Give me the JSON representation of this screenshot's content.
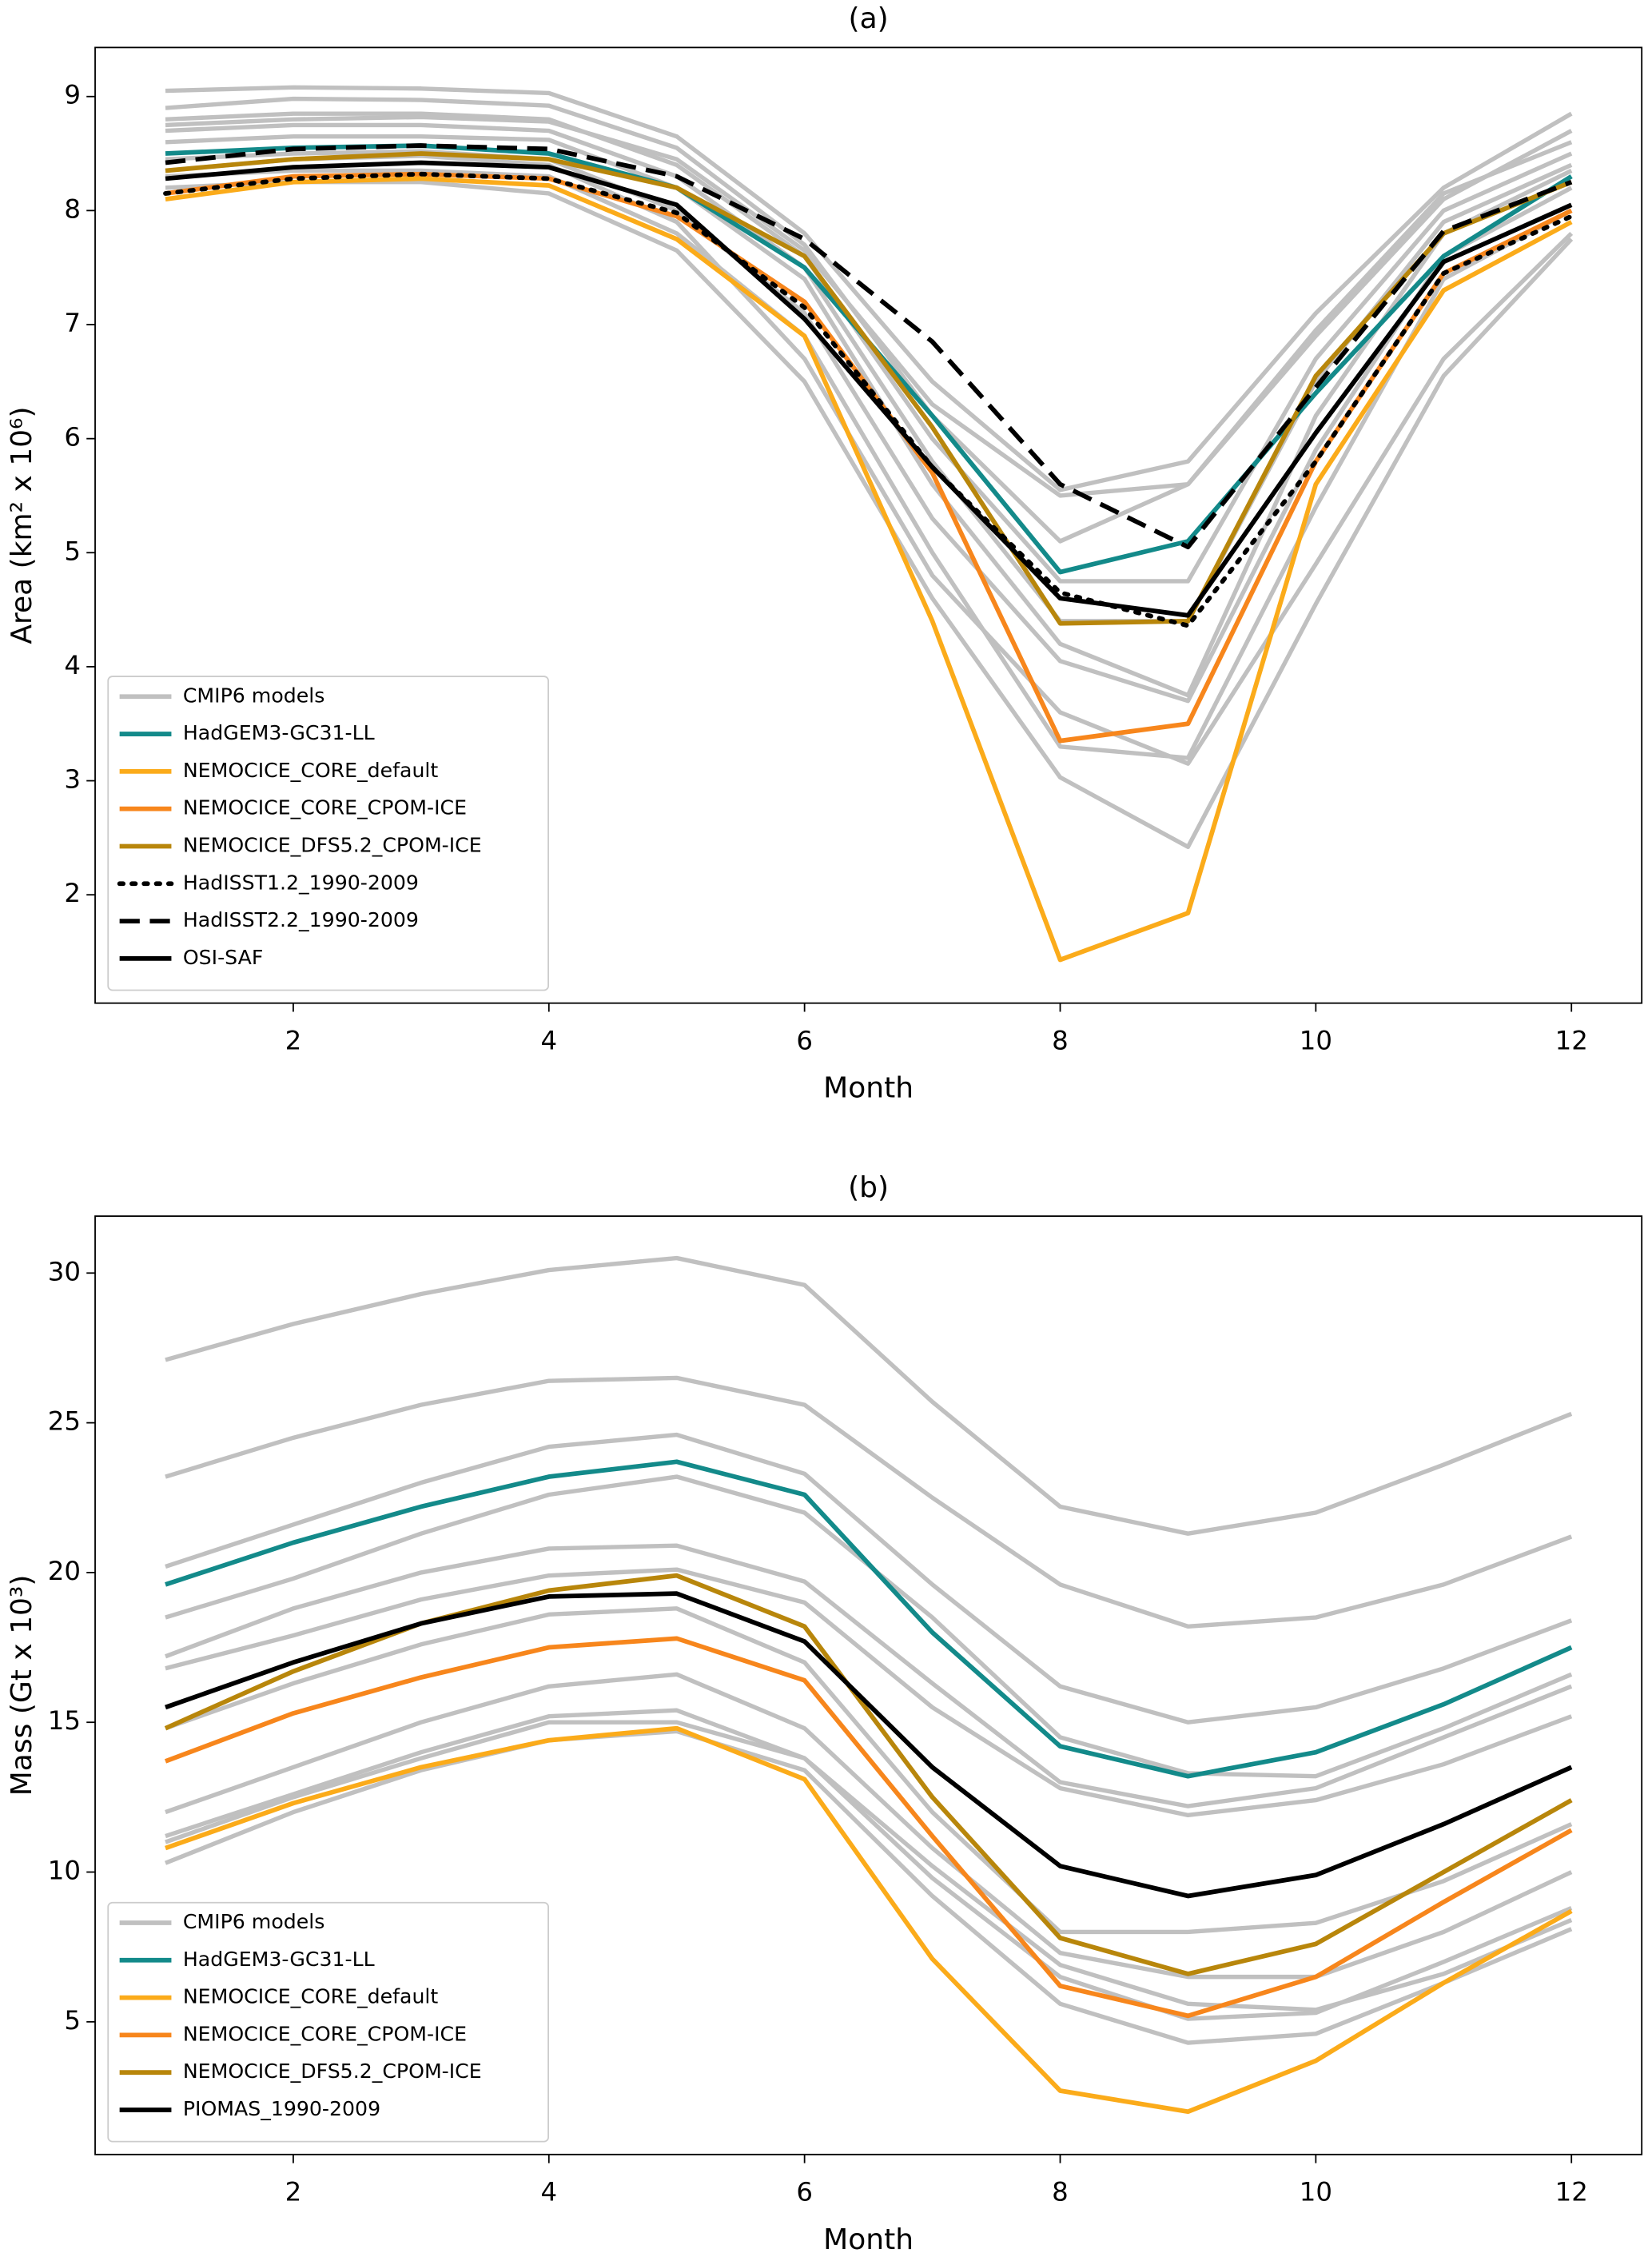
{
  "chart_data": [
    {
      "type": "line",
      "title": "(a)",
      "xlabel": "Month",
      "ylabel": "Area (km² x 10⁶)",
      "x": [
        1,
        2,
        3,
        4,
        5,
        6,
        7,
        8,
        9,
        10,
        11,
        12
      ],
      "xlim": [
        0.45,
        12.55
      ],
      "xticks": [
        2,
        4,
        6,
        8,
        10,
        12
      ],
      "ylim": [
        1.05,
        9.43
      ],
      "yticks": [
        2,
        3,
        4,
        5,
        6,
        7,
        8,
        9
      ],
      "legend": "lower left",
      "series": [
        {
          "name": "CMIP6 models",
          "color": "#c0c0c0",
          "members": [
            [
              9.05,
              9.08,
              9.07,
              9.03,
              8.65,
              7.8,
              6.5,
              5.55,
              5.8,
              7.1,
              8.2,
              8.85
            ],
            [
              8.9,
              8.98,
              8.97,
              8.92,
              8.55,
              7.7,
              6.2,
              5.1,
              5.6,
              6.9,
              8.1,
              8.7
            ],
            [
              8.8,
              8.85,
              8.85,
              8.8,
              8.4,
              7.6,
              6.0,
              4.75,
              4.75,
              6.7,
              8.0,
              8.5
            ],
            [
              8.7,
              8.75,
              8.75,
              8.7,
              8.3,
              7.5,
              5.8,
              4.4,
              4.4,
              6.5,
              7.9,
              8.4
            ],
            [
              8.6,
              8.65,
              8.65,
              8.62,
              8.2,
              7.4,
              5.6,
              4.2,
              3.75,
              6.2,
              7.8,
              8.35
            ],
            [
              8.45,
              8.5,
              8.52,
              8.45,
              8.0,
              7.1,
              5.3,
              4.05,
              3.7,
              5.9,
              7.6,
              8.2
            ],
            [
              8.3,
              8.35,
              8.35,
              8.3,
              7.8,
              6.9,
              5.0,
              3.3,
              3.2,
              5.4,
              7.4,
              8.0
            ],
            [
              8.2,
              8.25,
              8.25,
              8.15,
              7.65,
              6.5,
              4.6,
              3.03,
              2.42,
              4.55,
              6.55,
              7.75
            ],
            [
              8.35,
              8.45,
              8.48,
              8.4,
              7.9,
              6.7,
              4.8,
              3.6,
              3.15,
              4.9,
              6.7,
              7.8
            ],
            [
              8.75,
              8.8,
              8.82,
              8.78,
              8.45,
              7.65,
              6.3,
              5.5,
              5.6,
              6.95,
              8.15,
              8.6
            ]
          ]
        },
        {
          "name": "HadGEM3-GC31-LL",
          "color": "#138a8a",
          "values": [
            8.5,
            8.55,
            8.57,
            8.5,
            8.2,
            7.5,
            6.2,
            4.83,
            5.1,
            6.4,
            7.6,
            8.3
          ]
        },
        {
          "name": "NEMOCICE_CORE_default",
          "color": "#fbab1a",
          "values": [
            8.1,
            8.25,
            8.28,
            8.22,
            7.75,
            6.9,
            4.4,
            1.43,
            1.84,
            5.6,
            7.3,
            7.9
          ]
        },
        {
          "name": "NEMOCICE_CORE_CPOM-ICE",
          "color": "#f7861c",
          "values": [
            8.15,
            8.3,
            8.32,
            8.28,
            7.95,
            7.2,
            5.7,
            3.35,
            3.5,
            5.8,
            7.45,
            8.0
          ]
        },
        {
          "name": "NEMOCICE_DFS5.2_CPOM-ICE",
          "color": "#b8860b",
          "values": [
            8.35,
            8.45,
            8.5,
            8.45,
            8.2,
            7.6,
            6.1,
            4.38,
            4.4,
            6.55,
            7.8,
            8.25
          ]
        },
        {
          "name": "HadISST1.2_1990-2009",
          "color": "#000000",
          "linestyle": "dotted",
          "values": [
            8.15,
            8.28,
            8.32,
            8.28,
            7.98,
            7.15,
            5.75,
            4.65,
            4.36,
            5.8,
            7.45,
            7.95
          ]
        },
        {
          "name": "HadISST2.2_1990-2009",
          "color": "#000000",
          "linestyle": "dashed",
          "values": [
            8.42,
            8.54,
            8.57,
            8.54,
            8.3,
            7.75,
            6.85,
            5.6,
            5.05,
            6.45,
            7.82,
            8.25
          ]
        },
        {
          "name": "OSI-SAF",
          "color": "#000000",
          "values": [
            8.28,
            8.38,
            8.42,
            8.38,
            8.05,
            7.05,
            5.75,
            4.6,
            4.45,
            6.05,
            7.55,
            8.05
          ]
        }
      ]
    },
    {
      "type": "line",
      "title": "(b)",
      "xlabel": "Month",
      "ylabel": "Mass (Gt x 10³)",
      "x": [
        1,
        2,
        3,
        4,
        5,
        6,
        7,
        8,
        9,
        10,
        11,
        12
      ],
      "xlim": [
        0.45,
        12.55
      ],
      "xticks": [
        2,
        4,
        6,
        8,
        10,
        12
      ],
      "ylim": [
        0.57,
        31.9
      ],
      "yticks": [
        5,
        10,
        15,
        20,
        25,
        30
      ],
      "legend": "lower left",
      "series": [
        {
          "name": "CMIP6 models",
          "color": "#c0c0c0",
          "members": [
            [
              27.1,
              28.3,
              29.3,
              30.1,
              30.5,
              29.6,
              25.7,
              22.2,
              21.3,
              22.0,
              23.6,
              25.3
            ],
            [
              23.2,
              24.5,
              25.6,
              26.4,
              26.5,
              25.6,
              22.5,
              19.6,
              18.2,
              18.5,
              19.6,
              21.2
            ],
            [
              20.2,
              21.6,
              23.0,
              24.2,
              24.6,
              23.3,
              19.6,
              16.2,
              15.0,
              15.5,
              16.8,
              18.4
            ],
            [
              18.5,
              19.8,
              21.3,
              22.6,
              23.2,
              22.0,
              18.5,
              14.5,
              13.3,
              13.2,
              14.8,
              16.6
            ],
            [
              17.2,
              18.8,
              20.0,
              20.8,
              20.9,
              19.7,
              16.3,
              13.0,
              12.2,
              12.8,
              14.5,
              16.2
            ],
            [
              16.8,
              17.9,
              19.1,
              19.9,
              20.1,
              19.0,
              15.5,
              12.8,
              11.9,
              12.4,
              13.6,
              15.2
            ],
            [
              12.0,
              13.5,
              15.0,
              16.2,
              16.6,
              14.8,
              10.8,
              7.3,
              6.5,
              6.5,
              8.0,
              10.0
            ],
            [
              11.2,
              12.6,
              14.0,
              15.2,
              15.4,
              13.8,
              9.8,
              6.5,
              5.1,
              5.3,
              7.0,
              8.8
            ],
            [
              10.3,
              12.0,
              13.4,
              14.4,
              14.7,
              13.4,
              9.2,
              5.6,
              4.3,
              4.6,
              6.3,
              8.1
            ],
            [
              11.0,
              12.5,
              13.8,
              15.0,
              15.0,
              13.8,
              10.2,
              6.9,
              5.6,
              5.4,
              6.6,
              8.4
            ],
            [
              14.8,
              16.3,
              17.6,
              18.6,
              18.8,
              17.0,
              12.0,
              8.0,
              8.0,
              8.3,
              9.7,
              11.6
            ]
          ]
        },
        {
          "name": "HadGEM3-GC31-LL",
          "color": "#138a8a",
          "values": [
            19.6,
            21.0,
            22.2,
            23.2,
            23.7,
            22.6,
            18.0,
            14.2,
            13.2,
            14.0,
            15.6,
            17.5
          ]
        },
        {
          "name": "NEMOCICE_CORE_default",
          "color": "#fbab1a",
          "values": [
            10.8,
            12.3,
            13.5,
            14.4,
            14.8,
            13.1,
            7.1,
            2.7,
            2.0,
            3.7,
            6.3,
            8.7
          ]
        },
        {
          "name": "NEMOCICE_CORE_CPOM-ICE",
          "color": "#f7861c",
          "values": [
            13.7,
            15.3,
            16.5,
            17.5,
            17.8,
            16.4,
            11.2,
            6.2,
            5.2,
            6.5,
            9.0,
            11.4
          ]
        },
        {
          "name": "NEMOCICE_DFS5.2_CPOM-ICE",
          "color": "#b8860b",
          "values": [
            14.8,
            16.7,
            18.3,
            19.4,
            19.9,
            18.2,
            12.5,
            7.8,
            6.6,
            7.6,
            10.0,
            12.4
          ]
        },
        {
          "name": "PIOMAS_1990-2009",
          "color": "#000000",
          "values": [
            15.5,
            17.0,
            18.3,
            19.2,
            19.3,
            17.7,
            13.5,
            10.2,
            9.2,
            9.9,
            11.6,
            13.5
          ]
        }
      ]
    }
  ]
}
